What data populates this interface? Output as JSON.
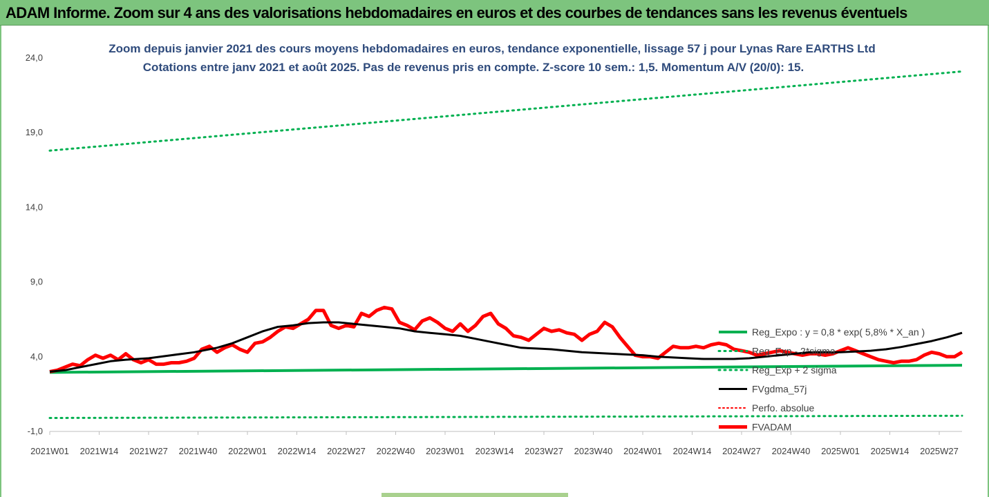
{
  "banner": {
    "title": "ADAM Informe. Zoom sur 4 ans des valorisations hebdomadaires en euros et des courbes de tendances sans les revenus éventuels"
  },
  "chart_data": {
    "type": "line",
    "title": "Zoom depuis janvier 2021 des cours moyens hebdomadaires en euros, tendance exponentielle, lissage 57 j pour Lynas Rare EARTHS Ltd",
    "subtitle": "Cotations entre janv 2021 et août 2025. Pas de revenus pris en compte. Z-score 10 sem.: 1,5. Momentum A/V (20/0): 15.",
    "xlabel": "",
    "ylabel": "",
    "ylim": [
      -1.0,
      24.0
    ],
    "y_ticks": [
      "-1,0",
      "4,0",
      "9,0",
      "14,0",
      "19,0",
      "24,0"
    ],
    "y_tick_values": [
      -1,
      4,
      9,
      14,
      19,
      24
    ],
    "x_tick_labels": [
      "2021W01",
      "2021W14",
      "2021W27",
      "2021W40",
      "2022W01",
      "2022W14",
      "2022W27",
      "2022W40",
      "2023W01",
      "2023W14",
      "2023W27",
      "2023W40",
      "2024W01",
      "2024W14",
      "2024W27",
      "2024W40",
      "2025W01",
      "2025W14",
      "2025W27"
    ],
    "grid": false,
    "legend_position": "bottom-right",
    "week_count": 241,
    "series": [
      {
        "name": "Reg_Expo : y = 0,8 * exp( 5,8% *  X_an )",
        "color": "#00b050",
        "style": "solid",
        "width": 4,
        "points": [
          [
            0,
            2.95
          ],
          [
            240,
            3.43
          ]
        ]
      },
      {
        "name": "Reg_Exp - 2*sigma",
        "color": "#00b050",
        "style": "dotted",
        "width": 3,
        "points": [
          [
            0,
            -0.1
          ],
          [
            240,
            0.05
          ]
        ]
      },
      {
        "name": "Reg_Exp + 2 sigma",
        "color": "#00b050",
        "style": "dotted",
        "width": 3,
        "points": [
          [
            0,
            17.8
          ],
          [
            240,
            23.1
          ]
        ]
      },
      {
        "name": "FVgdma_57j",
        "color": "#000000",
        "style": "solid",
        "width": 3,
        "points": [
          [
            0,
            3.0
          ],
          [
            4,
            3.1
          ],
          [
            8,
            3.3
          ],
          [
            12,
            3.5
          ],
          [
            16,
            3.7
          ],
          [
            20,
            3.8
          ],
          [
            26,
            3.9
          ],
          [
            32,
            4.1
          ],
          [
            38,
            4.3
          ],
          [
            44,
            4.6
          ],
          [
            48,
            4.9
          ],
          [
            52,
            5.3
          ],
          [
            56,
            5.7
          ],
          [
            60,
            6.0
          ],
          [
            64,
            6.1
          ],
          [
            68,
            6.25
          ],
          [
            72,
            6.3
          ],
          [
            76,
            6.3
          ],
          [
            80,
            6.2
          ],
          [
            84,
            6.1
          ],
          [
            88,
            6.0
          ],
          [
            92,
            5.9
          ],
          [
            96,
            5.7
          ],
          [
            100,
            5.6
          ],
          [
            104,
            5.5
          ],
          [
            108,
            5.4
          ],
          [
            112,
            5.2
          ],
          [
            116,
            5.0
          ],
          [
            120,
            4.8
          ],
          [
            124,
            4.6
          ],
          [
            128,
            4.55
          ],
          [
            132,
            4.5
          ],
          [
            136,
            4.4
          ],
          [
            140,
            4.3
          ],
          [
            144,
            4.25
          ],
          [
            148,
            4.2
          ],
          [
            152,
            4.15
          ],
          [
            156,
            4.1
          ],
          [
            160,
            4.0
          ],
          [
            164,
            3.95
          ],
          [
            168,
            3.9
          ],
          [
            172,
            3.85
          ],
          [
            176,
            3.85
          ],
          [
            180,
            3.85
          ],
          [
            184,
            3.9
          ],
          [
            188,
            4.0
          ],
          [
            192,
            4.1
          ],
          [
            196,
            4.2
          ],
          [
            200,
            4.3
          ],
          [
            204,
            4.3
          ],
          [
            208,
            4.3
          ],
          [
            212,
            4.35
          ],
          [
            216,
            4.4
          ],
          [
            220,
            4.5
          ],
          [
            224,
            4.65
          ],
          [
            228,
            4.85
          ],
          [
            232,
            5.05
          ],
          [
            236,
            5.3
          ],
          [
            240,
            5.6
          ]
        ]
      },
      {
        "name": "Perfo. absolue",
        "color": "#ff0000",
        "style": "dotted",
        "width": 2,
        "points": []
      },
      {
        "name": "FVADAM",
        "color": "#ff0000",
        "style": "solid",
        "width": 5,
        "points": [
          [
            0,
            3.0
          ],
          [
            2,
            3.1
          ],
          [
            4,
            3.3
          ],
          [
            6,
            3.5
          ],
          [
            8,
            3.4
          ],
          [
            10,
            3.8
          ],
          [
            12,
            4.1
          ],
          [
            14,
            3.9
          ],
          [
            16,
            4.1
          ],
          [
            18,
            3.8
          ],
          [
            20,
            4.2
          ],
          [
            22,
            3.8
          ],
          [
            24,
            3.6
          ],
          [
            26,
            3.8
          ],
          [
            28,
            3.5
          ],
          [
            30,
            3.5
          ],
          [
            32,
            3.6
          ],
          [
            34,
            3.6
          ],
          [
            36,
            3.7
          ],
          [
            38,
            3.9
          ],
          [
            40,
            4.5
          ],
          [
            42,
            4.7
          ],
          [
            44,
            4.3
          ],
          [
            46,
            4.6
          ],
          [
            48,
            4.8
          ],
          [
            50,
            4.5
          ],
          [
            52,
            4.3
          ],
          [
            54,
            4.9
          ],
          [
            56,
            5.0
          ],
          [
            58,
            5.3
          ],
          [
            60,
            5.7
          ],
          [
            62,
            6.0
          ],
          [
            64,
            5.9
          ],
          [
            66,
            6.2
          ],
          [
            68,
            6.5
          ],
          [
            70,
            7.1
          ],
          [
            72,
            7.1
          ],
          [
            74,
            6.1
          ],
          [
            76,
            5.9
          ],
          [
            78,
            6.1
          ],
          [
            80,
            6.0
          ],
          [
            82,
            6.9
          ],
          [
            84,
            6.7
          ],
          [
            86,
            7.1
          ],
          [
            88,
            7.3
          ],
          [
            90,
            7.2
          ],
          [
            92,
            6.3
          ],
          [
            94,
            6.1
          ],
          [
            96,
            5.8
          ],
          [
            98,
            6.4
          ],
          [
            100,
            6.6
          ],
          [
            102,
            6.3
          ],
          [
            104,
            5.9
          ],
          [
            106,
            5.7
          ],
          [
            108,
            6.2
          ],
          [
            110,
            5.7
          ],
          [
            112,
            6.1
          ],
          [
            114,
            6.7
          ],
          [
            116,
            6.9
          ],
          [
            118,
            6.2
          ],
          [
            120,
            5.9
          ],
          [
            122,
            5.4
          ],
          [
            124,
            5.3
          ],
          [
            126,
            5.1
          ],
          [
            128,
            5.5
          ],
          [
            130,
            5.9
          ],
          [
            132,
            5.7
          ],
          [
            134,
            5.8
          ],
          [
            136,
            5.6
          ],
          [
            138,
            5.5
          ],
          [
            140,
            5.1
          ],
          [
            142,
            5.5
          ],
          [
            144,
            5.7
          ],
          [
            146,
            6.3
          ],
          [
            148,
            6.0
          ],
          [
            150,
            5.3
          ],
          [
            152,
            4.7
          ],
          [
            154,
            4.1
          ],
          [
            156,
            4.0
          ],
          [
            158,
            4.0
          ],
          [
            160,
            3.9
          ],
          [
            162,
            4.3
          ],
          [
            164,
            4.7
          ],
          [
            166,
            4.6
          ],
          [
            168,
            4.6
          ],
          [
            170,
            4.7
          ],
          [
            172,
            4.6
          ],
          [
            174,
            4.8
          ],
          [
            176,
            4.9
          ],
          [
            178,
            4.8
          ],
          [
            180,
            4.5
          ],
          [
            182,
            4.4
          ],
          [
            184,
            4.3
          ],
          [
            186,
            4.1
          ],
          [
            188,
            4.2
          ],
          [
            190,
            4.3
          ],
          [
            192,
            4.4
          ],
          [
            194,
            4.3
          ],
          [
            196,
            4.2
          ],
          [
            198,
            4.1
          ],
          [
            200,
            4.2
          ],
          [
            202,
            4.2
          ],
          [
            204,
            4.1
          ],
          [
            206,
            4.2
          ],
          [
            208,
            4.4
          ],
          [
            210,
            4.6
          ],
          [
            212,
            4.4
          ],
          [
            214,
            4.2
          ],
          [
            216,
            4.0
          ],
          [
            218,
            3.8
          ],
          [
            220,
            3.7
          ],
          [
            222,
            3.6
          ],
          [
            224,
            3.7
          ],
          [
            226,
            3.7
          ],
          [
            228,
            3.8
          ],
          [
            230,
            4.1
          ],
          [
            232,
            4.3
          ],
          [
            234,
            4.2
          ],
          [
            236,
            4.0
          ],
          [
            238,
            4.0
          ],
          [
            240,
            4.3
          ]
        ]
      }
    ]
  }
}
